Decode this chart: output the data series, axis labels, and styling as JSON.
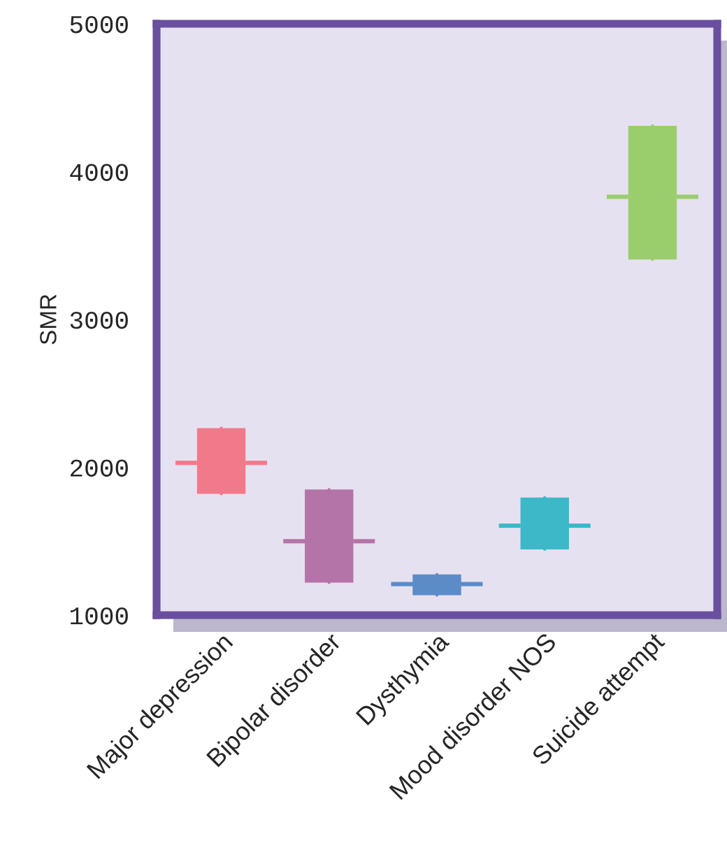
{
  "chart_data": {
    "type": "box",
    "ylabel": "SMR",
    "categories": [
      "Major depression",
      "Bipolar disorder",
      "Dysthymia",
      "Mood disorder NOS",
      "Suicide attempt"
    ],
    "colors": [
      "#f07a8a",
      "#b574a8",
      "#5b8cc8",
      "#3db8c9",
      "#9ace6c"
    ],
    "boxes": [
      {
        "low": 1820,
        "q1": 1820,
        "median": 2030,
        "q3": 2265,
        "high": 2265
      },
      {
        "low": 1220,
        "q1": 1220,
        "median": 1500,
        "q3": 1850,
        "high": 1850
      },
      {
        "low": 1135,
        "q1": 1135,
        "median": 1210,
        "q3": 1275,
        "high": 1275
      },
      {
        "low": 1445,
        "q1": 1445,
        "median": 1605,
        "q3": 1795,
        "high": 1795
      },
      {
        "low": 3405,
        "q1": 3405,
        "median": 3830,
        "q3": 4310,
        "high": 4310
      }
    ],
    "ylim": [
      1000,
      5000
    ],
    "yticks": [
      1000,
      2000,
      3000,
      4000,
      5000
    ],
    "grid": false,
    "legend": false
  }
}
